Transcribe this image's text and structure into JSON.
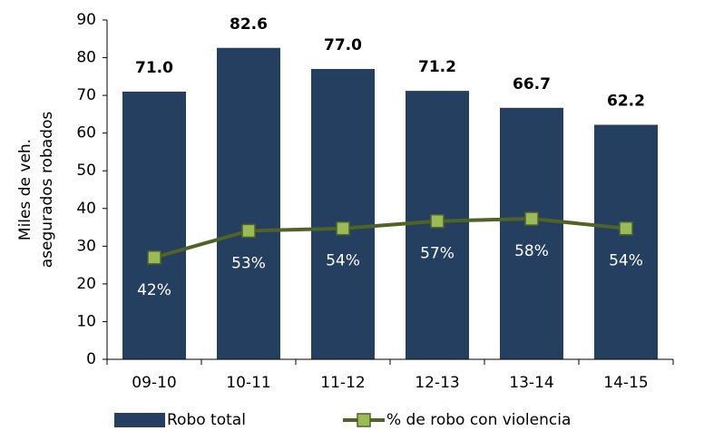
{
  "chart_data": {
    "type": "bar_line",
    "ylabel": [
      "Miles de veh.",
      "asegurados robados"
    ],
    "categories": [
      "09-10",
      "10-11",
      "11-12",
      "12-13",
      "13-14",
      "14-15"
    ],
    "series": [
      {
        "name": "Robo total",
        "type": "bar",
        "color": "#243f60",
        "values": [
          71.0,
          82.6,
          77.0,
          71.2,
          66.7,
          62.2
        ],
        "value_labels": [
          "71.0",
          "82.6",
          "77.0",
          "71.2",
          "66.7",
          "62.2"
        ]
      },
      {
        "name": "% de robo con violencia",
        "type": "line",
        "axis": "y2",
        "color": "#4f6228",
        "marker_color": "#9bbb59",
        "values": [
          42,
          53,
          54,
          57,
          58,
          54
        ],
        "value_labels": [
          "42%",
          "53%",
          "54%",
          "57%",
          "58%",
          "54%"
        ]
      }
    ],
    "ylim": [
      0,
      90
    ],
    "yticks": [
      0,
      10,
      20,
      30,
      40,
      50,
      60,
      70,
      80,
      90
    ],
    "y2lim": [
      0,
      140
    ]
  }
}
